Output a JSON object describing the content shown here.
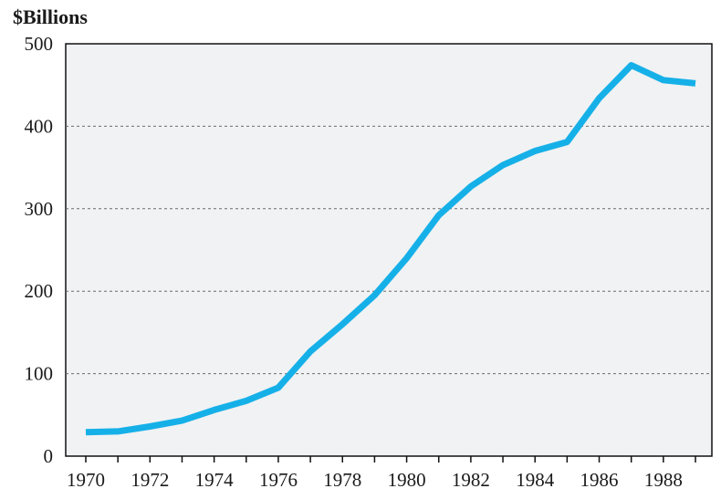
{
  "chart_data": {
    "type": "line",
    "unit_label": "$Billions",
    "xlabel": "",
    "ylabel": "",
    "xlim": [
      1970,
      1989
    ],
    "ylim": [
      0,
      500
    ],
    "y_ticks": [
      0,
      100,
      200,
      300,
      400,
      500
    ],
    "x_tick_labels": [
      "1970",
      "1972",
      "1974",
      "1976",
      "1978",
      "1980",
      "1982",
      "1984",
      "1986",
      "1988"
    ],
    "x_minor_ticks": [
      1970,
      1971,
      1972,
      1973,
      1974,
      1975,
      1976,
      1977,
      1978,
      1979,
      1980,
      1981,
      1982,
      1983,
      1984,
      1985,
      1986,
      1987,
      1988,
      1989
    ],
    "grid": "horizontal-dashed",
    "legend": "none",
    "line_color": "#16b0e8",
    "background_color": "#f0f2f4",
    "series": [
      {
        "x": [
          1970,
          1971,
          1972,
          1973,
          1974,
          1975,
          1976,
          1977,
          1978,
          1979,
          1980,
          1981,
          1982,
          1983,
          1984,
          1985,
          1986,
          1987,
          1988,
          1989
        ],
        "values": [
          29,
          30,
          36,
          43,
          56,
          67,
          83,
          127,
          160,
          195,
          240,
          292,
          327,
          353,
          370,
          381,
          434,
          474,
          456,
          452
        ]
      }
    ]
  }
}
